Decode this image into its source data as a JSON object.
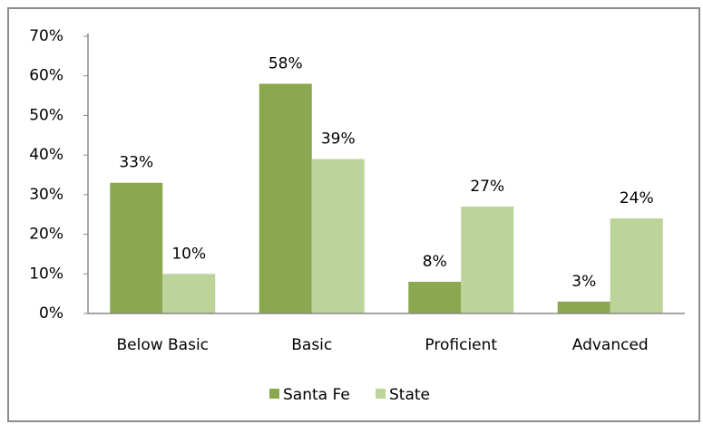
{
  "chart_data": {
    "type": "bar",
    "categories": [
      "Below Basic",
      "Basic",
      "Proficient",
      "Advanced"
    ],
    "series": [
      {
        "name": "Santa Fe",
        "color": "#8aa84f",
        "values": [
          33,
          58,
          8,
          3
        ],
        "value_labels": [
          "33%",
          "58%",
          "8%",
          "3%"
        ]
      },
      {
        "name": "State",
        "color": "#bcd39a",
        "values": [
          10,
          39,
          27,
          24
        ],
        "value_labels": [
          "10%",
          "39%",
          "27%",
          "24%"
        ]
      }
    ],
    "ylim": [
      0,
      70
    ],
    "yticks": [
      {
        "value": 0,
        "label": "0%"
      },
      {
        "value": 10,
        "label": "10%"
      },
      {
        "value": 20,
        "label": "20%"
      },
      {
        "value": 30,
        "label": "30%"
      },
      {
        "value": 40,
        "label": "40%"
      },
      {
        "value": 50,
        "label": "50%"
      },
      {
        "value": 60,
        "label": "60%"
      },
      {
        "value": 70,
        "label": "70%"
      }
    ],
    "grid": false,
    "legend": "bottom"
  }
}
